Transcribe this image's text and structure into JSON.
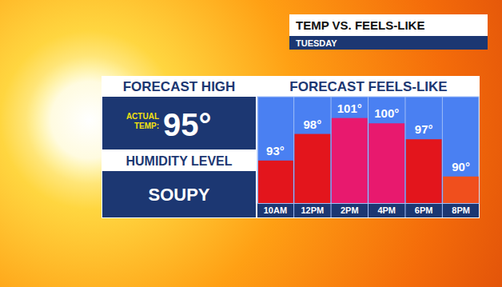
{
  "chart_data": {
    "type": "bar",
    "title": "TEMP VS. FEELS-LIKE",
    "subtitle": "TUESDAY",
    "annotations": [
      "FORECAST HIGH",
      "ACTUAL TEMP:",
      "95°",
      "HUMIDITY LEVEL",
      "SOUPY",
      "FORECAST FEELS-LIKE"
    ],
    "categories": [
      "10AM",
      "12PM",
      "2PM",
      "4PM",
      "6PM",
      "8PM"
    ],
    "values": [
      93,
      98,
      101,
      100,
      97,
      90
    ],
    "value_labels": [
      "93°",
      "98°",
      "101°",
      "100°",
      "97°",
      "90°"
    ],
    "colors": [
      "#e3151c",
      "#e3151c",
      "#e8196e",
      "#e8196e",
      "#e3151c",
      "#f04f1d"
    ],
    "ylim": [
      85,
      105
    ],
    "yticks": [],
    "grid": false,
    "data_labels": true,
    "tick_labels": "x"
  }
}
